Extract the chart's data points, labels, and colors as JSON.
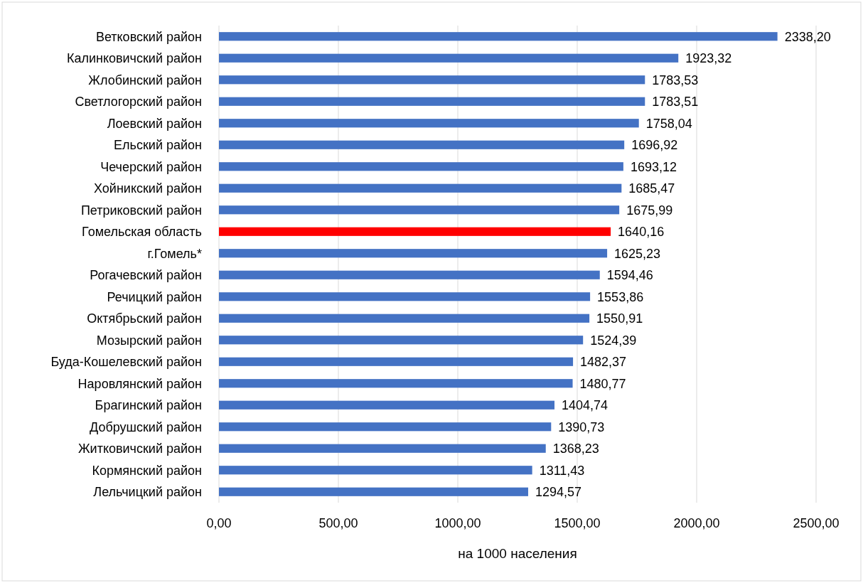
{
  "chart_data": {
    "type": "bar",
    "orientation": "horizontal",
    "xlabel": "на 1000 населения",
    "categories": [
      "Ветковский район",
      "Калинковичский район",
      "Жлобинский район",
      "Светлогорский район",
      "Лоевский район",
      "Ельский район",
      "Чечерский район",
      "Хойникский район",
      "Петриковский район",
      "Гомельская область",
      "г.Гомель*",
      "Рогачевский район",
      "Речицкий район",
      "Октябрьский район",
      "Мозырский район",
      "Буда-Кошелевский район",
      "Наровлянский район",
      "Брагинский район",
      "Добрушский район",
      "Житковичский район",
      "Кормянский район",
      "Лельчицкий район"
    ],
    "values": [
      2338.2,
      1923.32,
      1783.53,
      1783.51,
      1758.04,
      1696.92,
      1693.12,
      1685.47,
      1675.99,
      1640.16,
      1625.23,
      1594.46,
      1553.86,
      1550.91,
      1524.39,
      1482.37,
      1480.77,
      1404.74,
      1390.73,
      1368.23,
      1311.43,
      1294.57
    ],
    "value_labels": [
      "2338,20",
      "1923,32",
      "1783,53",
      "1783,51",
      "1758,04",
      "1696,92",
      "1693,12",
      "1685,47",
      "1675,99",
      "1640,16",
      "1625,23",
      "1594,46",
      "1553,86",
      "1550,91",
      "1524,39",
      "1482,37",
      "1480,77",
      "1404,74",
      "1390,73",
      "1368,23",
      "1311,43",
      "1294,57"
    ],
    "colors": [
      "#4472c4",
      "#4472c4",
      "#4472c4",
      "#4472c4",
      "#4472c4",
      "#4472c4",
      "#4472c4",
      "#4472c4",
      "#4472c4",
      "#ff0000",
      "#4472c4",
      "#4472c4",
      "#4472c4",
      "#4472c4",
      "#4472c4",
      "#4472c4",
      "#4472c4",
      "#4472c4",
      "#4472c4",
      "#4472c4",
      "#4472c4",
      "#4472c4"
    ],
    "xlim": [
      0,
      2500
    ],
    "xticks": [
      {
        "value": 0,
        "label": "0,00"
      },
      {
        "value": 500,
        "label": "500,00"
      },
      {
        "value": 1000,
        "label": "1000,00"
      },
      {
        "value": 1500,
        "label": "1500,00"
      },
      {
        "value": 2000,
        "label": "2000,00"
      },
      {
        "value": 2500,
        "label": "2500,00"
      }
    ],
    "grid": "x"
  }
}
